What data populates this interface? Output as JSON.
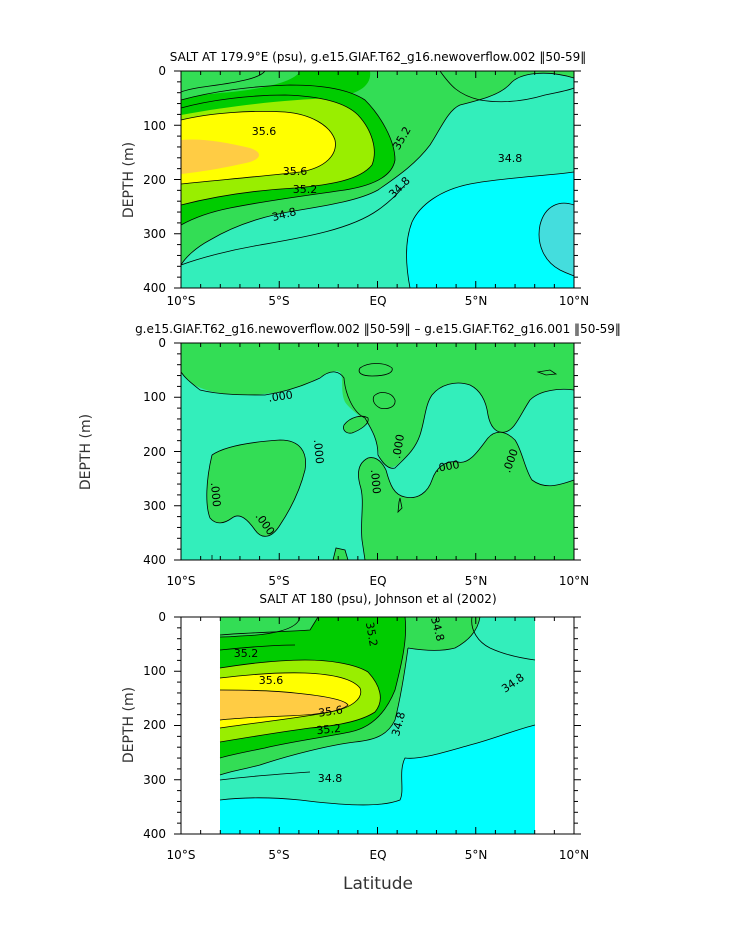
{
  "figure": {
    "xlabel": "Latitude",
    "colors": {
      "c348_low": "#00FFFF",
      "c348_352": "#33EEBB",
      "c352_356": "#33DD55",
      "c356_360": "#00CC00",
      "c360_364": "#99EE00",
      "c364_368": "#FFFF00",
      "c368_high": "#FFCC44",
      "diff_neg": "#33EEBB",
      "diff_pos": "#33DD55",
      "background": "#FFFFFF"
    }
  },
  "chart_data": [
    {
      "type": "contour",
      "title": "SALT AT 179.9°E (psu), g.e15.GIAF.T62_g16.newoverflow.002 ‖50-59‖",
      "xlabel": "",
      "ylabel": "DEPTH (m)",
      "xlim": [
        -10,
        10
      ],
      "ylim": [
        400,
        0
      ],
      "xticks": [
        "10°S",
        "5°S",
        "EQ",
        "5°N",
        "10°N"
      ],
      "yticks": [
        "0",
        "100",
        "200",
        "300",
        "400"
      ],
      "contour_labels": [
        "35.6",
        "35.6",
        "35.2",
        "35.2",
        "34.8",
        "34.8",
        "34.8"
      ],
      "units": "psu"
    },
    {
      "type": "contour",
      "title": "g.e15.GIAF.T62_g16.newoverflow.002 ‖50-59‖ – g.e15.GIAF.T62_g16.001 ‖50-59‖",
      "xlabel": "",
      "ylabel": "DEPTH (m)",
      "xlim": [
        -10,
        10
      ],
      "ylim": [
        400,
        0
      ],
      "xticks": [
        "10°S",
        "5°S",
        "EQ",
        "5°N",
        "10°N"
      ],
      "yticks": [
        "0",
        "100",
        "200",
        "300",
        "400"
      ],
      "contour_labels": [
        ".000",
        ".000",
        ".000",
        ".000",
        ".000",
        ".000",
        ".000",
        ".000"
      ],
      "units": "psu"
    },
    {
      "type": "contour",
      "title": "SALT AT 180 (psu), Johnson et al (2002)",
      "xlabel": "Latitude",
      "ylabel": "DEPTH (m)",
      "xlim": [
        -10,
        10
      ],
      "ylim": [
        400,
        0
      ],
      "data_xrange": [
        -8,
        8
      ],
      "xticks": [
        "10°S",
        "5°S",
        "EQ",
        "5°N",
        "10°N"
      ],
      "yticks": [
        "0",
        "100",
        "200",
        "300",
        "400"
      ],
      "contour_labels": [
        "35.2",
        "35.6",
        "35.6",
        "35.2",
        "35.2",
        "34.8",
        "34.8",
        "34.8",
        "34.8"
      ],
      "units": "psu"
    }
  ]
}
